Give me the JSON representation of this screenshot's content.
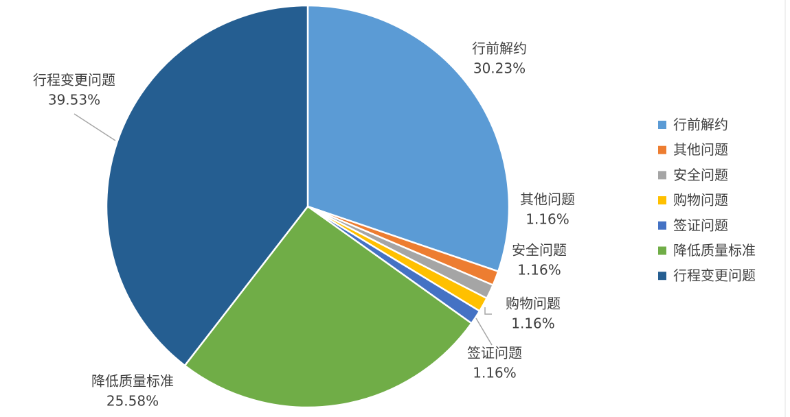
{
  "chart_data": {
    "type": "pie",
    "categories": [
      "行前解约",
      "其他问题",
      "安全问题",
      "购物问题",
      "签证问题",
      "降低质量标准",
      "行程变更问题"
    ],
    "values": [
      30.23,
      1.16,
      1.16,
      1.16,
      1.16,
      25.58,
      39.53
    ],
    "value_labels": [
      "30.23%",
      "1.16%",
      "1.16%",
      "1.16%",
      "1.16%",
      "25.58%",
      "39.53%"
    ],
    "colors": [
      "#5b9bd5",
      "#ed7d31",
      "#a5a5a5",
      "#ffc000",
      "#4472c4",
      "#70ad47",
      "#255e91"
    ],
    "legend": "right"
  }
}
